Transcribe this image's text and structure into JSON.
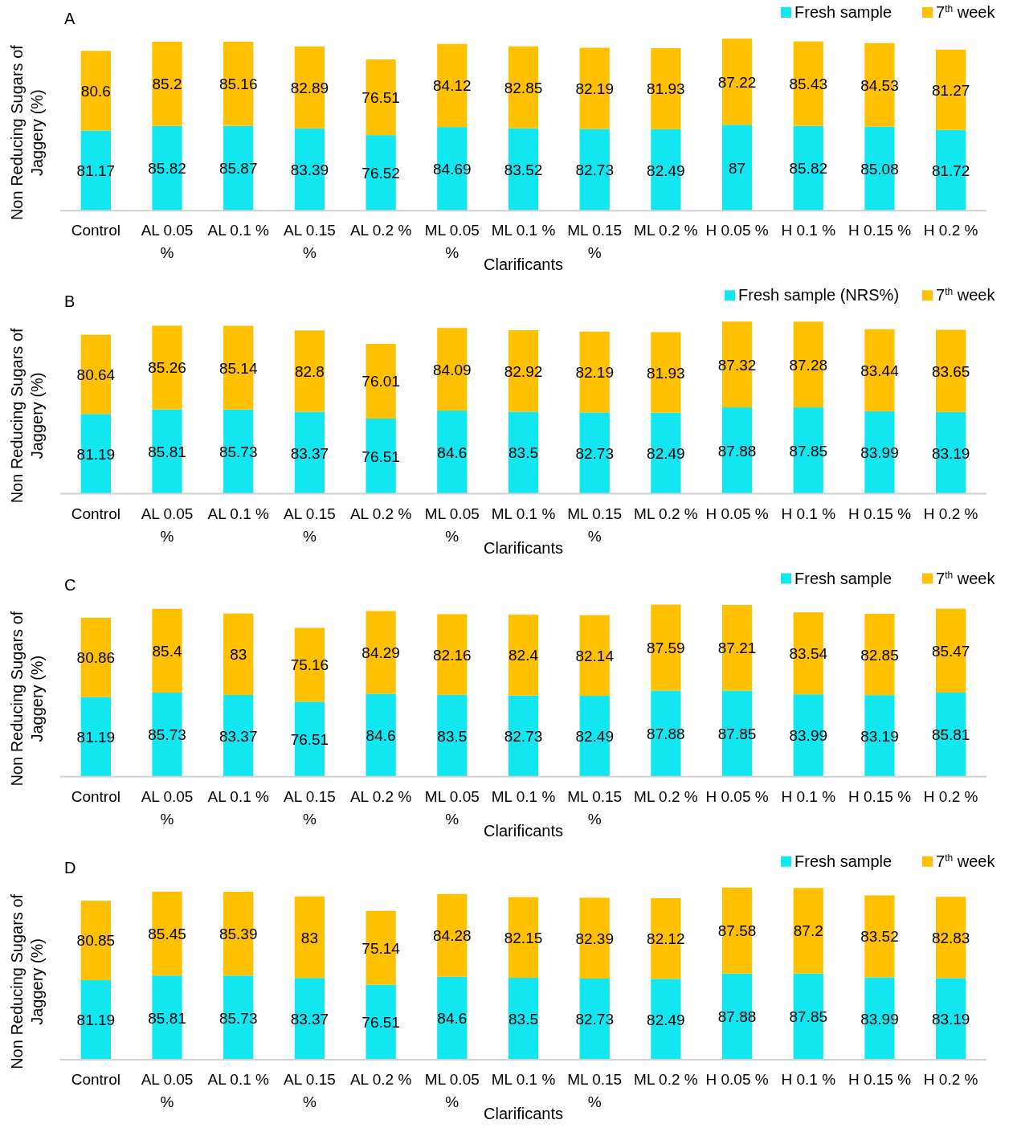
{
  "chart_data": [
    {
      "type": "bar",
      "title": "A",
      "xlabel": "Clarificants",
      "ylabel": "Non Reducing Sugars of Jaggery (%)",
      "stacked": true,
      "data_labels": true,
      "legend": "top right",
      "categories": [
        "Control",
        "AL 0.05 %",
        "AL 0.1 %",
        "AL 0.15 %",
        "AL 0.2 %",
        "ML 0.05 %",
        "ML 0.1 %",
        "ML 0.15 %",
        "ML 0.2 %",
        "H 0.05 %",
        "H 0.1 %",
        "H 0.15 %",
        "H 0.2 %"
      ],
      "series": [
        {
          "name": "Fresh sample",
          "color": "#12e6f0",
          "values": [
            81.17,
            85.82,
            85.87,
            83.39,
            76.52,
            84.69,
            83.52,
            82.73,
            82.49,
            87,
            85.82,
            85.08,
            81.72
          ]
        },
        {
          "name": "7$^{th}$ week",
          "color": "#ffc000",
          "values": [
            80.6,
            85.2,
            85.16,
            82.89,
            76.51,
            84.12,
            82.85,
            82.19,
            81.93,
            87.22,
            85.43,
            84.53,
            81.27
          ]
        }
      ]
    },
    {
      "type": "bar",
      "title": "B",
      "xlabel": "Clarificants",
      "ylabel": "Non Reducing Sugars of Jaggery (%)",
      "stacked": true,
      "data_labels": true,
      "legend": "top right",
      "categories": [
        "Control",
        "AL 0.05 %",
        "AL 0.1 %",
        "AL 0.15 %",
        "AL 0.2 %",
        "ML 0.05 %",
        "ML 0.1 %",
        "ML 0.15 %",
        "ML 0.2 %",
        "H 0.05 %",
        "H 0.1 %",
        "H 0.15 %",
        "H 0.2 %"
      ],
      "series": [
        {
          "name": "Fresh sample (NRS%)",
          "color": "#12e6f0",
          "values": [
            81.19,
            85.81,
            85.73,
            83.37,
            76.51,
            84.6,
            83.5,
            82.73,
            82.49,
            87.88,
            87.85,
            83.99,
            83.19
          ]
        },
        {
          "name": "7$^{th}$ week",
          "color": "#ffc000",
          "values": [
            80.64,
            85.26,
            85.14,
            82.8,
            76.01,
            84.09,
            82.92,
            82.19,
            81.93,
            87.32,
            87.28,
            83.44,
            83.65
          ]
        }
      ]
    },
    {
      "type": "bar",
      "title": "C",
      "xlabel": "Clarificants",
      "ylabel": "Non Reducing Sugars of Jaggery (%)",
      "stacked": true,
      "data_labels": true,
      "legend": "top right",
      "categories": [
        "Control",
        "AL 0.05 %",
        "AL 0.1 %",
        "AL 0.15 %",
        "AL 0.2 %",
        "ML 0.05 %",
        "ML 0.1 %",
        "ML 0.15 %",
        "ML 0.2 %",
        "H 0.05 %",
        "H 0.1 %",
        "H 0.15 %",
        "H 0.2 %"
      ],
      "series": [
        {
          "name": "Fresh sample",
          "color": "#12e6f0",
          "values": [
            81.19,
            85.73,
            83.37,
            76.51,
            84.6,
            83.5,
            82.73,
            82.49,
            87.88,
            87.85,
            83.99,
            83.19,
            85.81
          ]
        },
        {
          "name": "7$^{th}$ week",
          "color": "#ffc000",
          "values": [
            80.86,
            85.4,
            83,
            75.16,
            84.29,
            82.16,
            82.4,
            82.14,
            87.59,
            87.21,
            83.54,
            82.85,
            85.47
          ]
        }
      ]
    },
    {
      "type": "bar",
      "title": "D",
      "xlabel": "Clarificants",
      "ylabel": "Non Reducing Sugars of Jaggery (%)",
      "stacked": true,
      "data_labels": true,
      "legend": "top right",
      "categories": [
        "Control",
        "AL 0.05 %",
        "AL 0.1 %",
        "AL 0.15 %",
        "AL 0.2 %",
        "ML 0.05 %",
        "ML 0.1 %",
        "ML 0.15 %",
        "ML 0.2 %",
        "H 0.05 %",
        "H 0.1 %",
        "H 0.15 %",
        "H 0.2 %"
      ],
      "series": [
        {
          "name": "Fresh sample",
          "color": "#12e6f0",
          "values": [
            81.19,
            85.81,
            85.73,
            83.37,
            76.51,
            84.6,
            83.5,
            82.73,
            82.49,
            87.88,
            87.85,
            83.99,
            83.19
          ]
        },
        {
          "name": "7$^{th}$ week",
          "color": "#ffc000",
          "values": [
            80.85,
            85.45,
            85.39,
            83,
            75.14,
            84.28,
            82.15,
            82.39,
            82.12,
            87.58,
            87.2,
            83.52,
            82.83
          ]
        }
      ]
    }
  ]
}
